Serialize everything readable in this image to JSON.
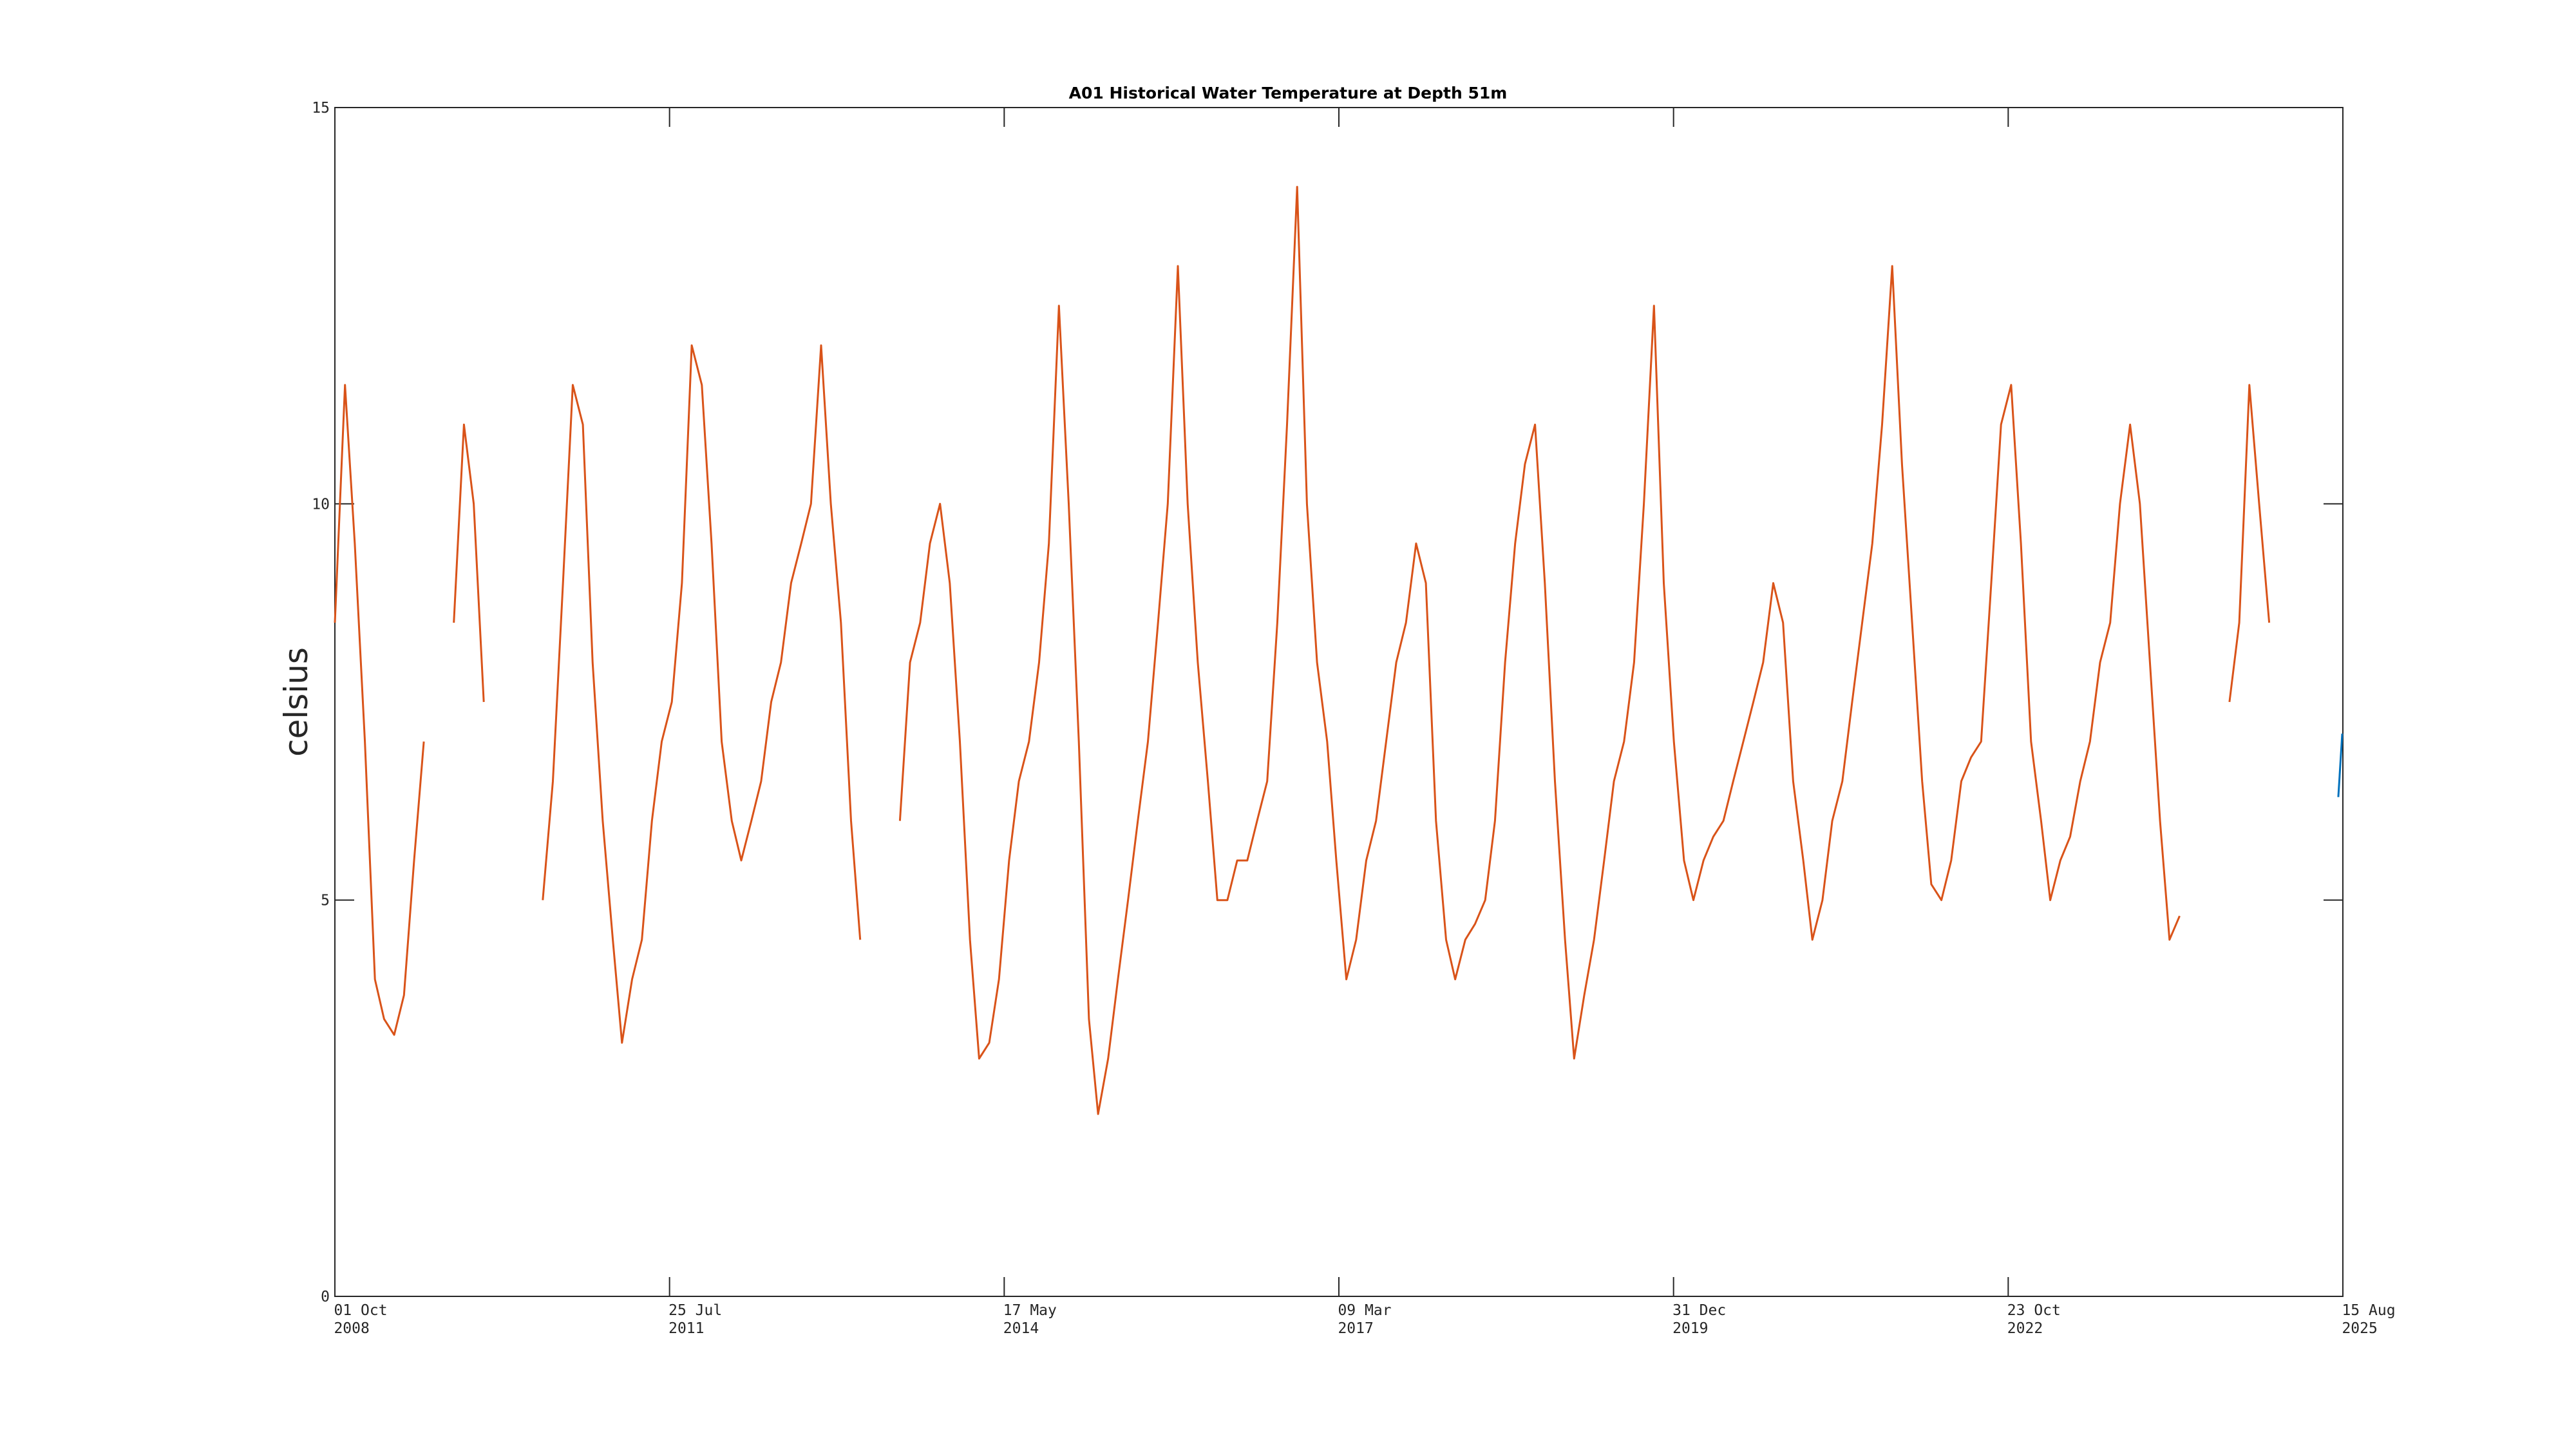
{
  "chart_data": {
    "type": "line",
    "title": "A01 Historical Water Temperature at Depth 51m",
    "ylabel": "celsius",
    "xlim": [
      "2008-10-01",
      "2025-08-15"
    ],
    "xticks": [
      {
        "value": "2008-10-01",
        "label": "01 Oct\n2008"
      },
      {
        "value": "2011-07-25",
        "label": "25 Jul\n2011"
      },
      {
        "value": "2014-05-17",
        "label": "17 May\n2014"
      },
      {
        "value": "2017-03-09",
        "label": "09 Mar\n2017"
      },
      {
        "value": "2019-12-31",
        "label": "31 Dec\n2019"
      },
      {
        "value": "2022-10-23",
        "label": "23 Oct\n2022"
      },
      {
        "value": "2025-08-15",
        "label": "15 Aug\n2025"
      }
    ],
    "ylim": [
      0,
      15
    ],
    "yticks": [
      0,
      5,
      10,
      15
    ],
    "x": [
      "2008-10-01",
      "2008-11-01",
      "2008-12-01",
      "2009-01-01",
      "2009-02-01",
      "2009-03-01",
      "2009-04-01",
      "2009-05-01",
      "2009-06-01",
      "2009-07-01",
      "2009-08-01",
      "2009-09-01",
      "2009-10-01",
      "2009-11-01",
      "2009-12-01",
      "2010-01-01",
      "2010-02-01",
      "2010-03-01",
      "2010-04-01",
      "2010-05-01",
      "2010-06-01",
      "2010-07-01",
      "2010-08-01",
      "2010-09-01",
      "2010-10-01",
      "2010-11-01",
      "2010-12-01",
      "2011-01-01",
      "2011-02-01",
      "2011-03-01",
      "2011-04-01",
      "2011-05-01",
      "2011-06-01",
      "2011-07-01",
      "2011-08-01",
      "2011-09-01",
      "2011-10-01",
      "2011-11-01",
      "2011-12-01",
      "2012-01-01",
      "2012-02-01",
      "2012-03-01",
      "2012-04-01",
      "2012-05-01",
      "2012-06-01",
      "2012-07-01",
      "2012-08-01",
      "2012-09-01",
      "2012-10-01",
      "2012-11-01",
      "2012-12-01",
      "2013-01-01",
      "2013-02-01",
      "2013-03-01",
      "2013-04-01",
      "2013-05-01",
      "2013-06-01",
      "2013-07-01",
      "2013-08-01",
      "2013-09-01",
      "2013-10-01",
      "2013-11-01",
      "2013-12-01",
      "2014-01-01",
      "2014-02-01",
      "2014-03-01",
      "2014-04-01",
      "2014-05-01",
      "2014-06-01",
      "2014-07-01",
      "2014-08-01",
      "2014-09-01",
      "2014-10-01",
      "2014-11-01",
      "2014-12-01",
      "2015-01-01",
      "2015-02-01",
      "2015-03-01",
      "2015-04-01",
      "2015-05-01",
      "2015-06-01",
      "2015-07-01",
      "2015-08-01",
      "2015-09-01",
      "2015-10-01",
      "2015-11-01",
      "2015-12-01",
      "2016-01-01",
      "2016-02-01",
      "2016-03-01",
      "2016-04-01",
      "2016-05-01",
      "2016-06-01",
      "2016-07-01",
      "2016-08-01",
      "2016-09-01",
      "2016-10-01",
      "2016-11-01",
      "2016-12-01",
      "2017-01-01",
      "2017-02-01",
      "2017-03-01",
      "2017-04-01",
      "2017-05-01",
      "2017-06-01",
      "2017-07-01",
      "2017-08-01",
      "2017-09-01",
      "2017-10-01",
      "2017-11-01",
      "2017-12-01",
      "2018-01-01",
      "2018-02-01",
      "2018-03-01",
      "2018-04-01",
      "2018-05-01",
      "2018-06-01",
      "2018-07-01",
      "2018-08-01",
      "2018-09-01",
      "2018-10-01",
      "2018-11-01",
      "2018-12-01",
      "2019-01-01",
      "2019-02-01",
      "2019-03-01",
      "2019-04-01",
      "2019-05-01",
      "2019-06-01",
      "2019-07-01",
      "2019-08-01",
      "2019-09-01",
      "2019-10-01",
      "2019-11-01",
      "2019-12-01",
      "2020-01-01",
      "2020-02-01",
      "2020-03-01",
      "2020-04-01",
      "2020-05-01",
      "2020-06-01",
      "2020-07-01",
      "2020-08-01",
      "2020-09-01",
      "2020-10-01",
      "2020-11-01",
      "2020-12-01",
      "2021-01-01",
      "2021-02-01",
      "2021-03-01",
      "2021-04-01",
      "2021-05-01",
      "2021-06-01",
      "2021-07-01",
      "2021-08-01",
      "2021-09-01",
      "2021-10-01",
      "2021-11-01",
      "2021-12-01",
      "2022-01-01",
      "2022-02-01",
      "2022-03-01",
      "2022-04-01",
      "2022-05-01",
      "2022-06-01",
      "2022-07-01",
      "2022-08-01",
      "2022-09-01",
      "2022-10-01",
      "2022-11-01",
      "2022-12-01",
      "2023-01-01",
      "2023-02-01",
      "2023-03-01",
      "2023-04-01",
      "2023-05-01",
      "2023-06-01",
      "2023-07-01",
      "2023-08-01",
      "2023-09-01",
      "2023-10-01",
      "2023-11-01",
      "2023-12-01",
      "2024-01-01",
      "2024-02-01",
      "2024-03-01",
      "2024-04-01",
      "2024-05-01",
      "2024-06-01",
      "2024-07-01",
      "2024-08-01",
      "2024-09-01",
      "2024-10-01",
      "2024-11-01",
      "2024-12-01",
      "2025-01-01",
      "2025-02-01",
      "2025-03-01",
      "2025-04-01",
      "2025-05-01",
      "2025-06-01",
      "2025-07-01",
      "2025-08-01"
    ],
    "series": [
      {
        "color": "#d95319",
        "values": [
          8.5,
          11.5,
          9.5,
          7,
          4,
          3.5,
          3.3,
          3.8,
          5.5,
          7,
          null,
          null,
          8.5,
          11,
          10,
          7.5,
          null,
          null,
          null,
          null,
          null,
          5,
          6.5,
          9,
          11.5,
          11,
          8,
          6,
          4.5,
          3.2,
          4,
          4.5,
          6,
          7,
          7.5,
          9,
          12,
          11.5,
          9.5,
          7,
          6,
          5.5,
          6,
          6.5,
          7.5,
          8,
          9,
          9.5,
          10,
          12,
          10,
          8.5,
          6,
          4.5,
          null,
          null,
          null,
          6,
          8,
          8.5,
          9.5,
          10,
          9,
          7,
          4.5,
          3,
          3.2,
          4,
          5.5,
          6.5,
          7,
          8,
          9.5,
          12.5,
          10,
          7,
          3.5,
          2.3,
          3,
          4,
          5,
          6,
          7,
          8.5,
          10,
          13,
          10,
          8,
          6.5,
          5,
          5,
          5.5,
          5.5,
          6,
          6.5,
          8.5,
          11,
          14,
          10,
          8,
          7,
          5.5,
          4,
          4.5,
          5.5,
          6,
          7,
          8,
          8.5,
          9.5,
          9,
          6,
          4.5,
          4,
          4.5,
          4.7,
          5,
          6,
          8,
          9.5,
          10.5,
          11,
          9,
          6.5,
          4.5,
          3,
          3.8,
          4.5,
          5.5,
          6.5,
          7,
          8,
          10,
          12.5,
          9,
          7,
          5.5,
          5,
          5.5,
          5.8,
          6,
          6.5,
          7,
          7.5,
          8,
          9,
          8.5,
          6.5,
          5.5,
          4.5,
          5,
          6,
          6.5,
          7.5,
          8.5,
          9.5,
          11,
          13,
          10.5,
          8.5,
          6.5,
          5.2,
          5,
          5.5,
          6.5,
          6.8,
          7,
          9,
          11,
          11.5,
          9.5,
          7,
          6,
          5,
          5.5,
          5.8,
          6.5,
          7,
          8,
          8.5,
          10,
          11,
          10,
          8,
          6,
          4.5,
          4.8,
          null,
          null,
          null,
          null,
          7.5,
          8.5,
          11.5,
          10,
          8.5,
          null,
          null,
          null,
          null,
          null,
          null,
          null
        ]
      },
      {
        "color": "#0072bd",
        "x": [
          "2025-08-01",
          "2025-08-13"
        ],
        "values": [
          6.3,
          7.1
        ]
      }
    ]
  }
}
